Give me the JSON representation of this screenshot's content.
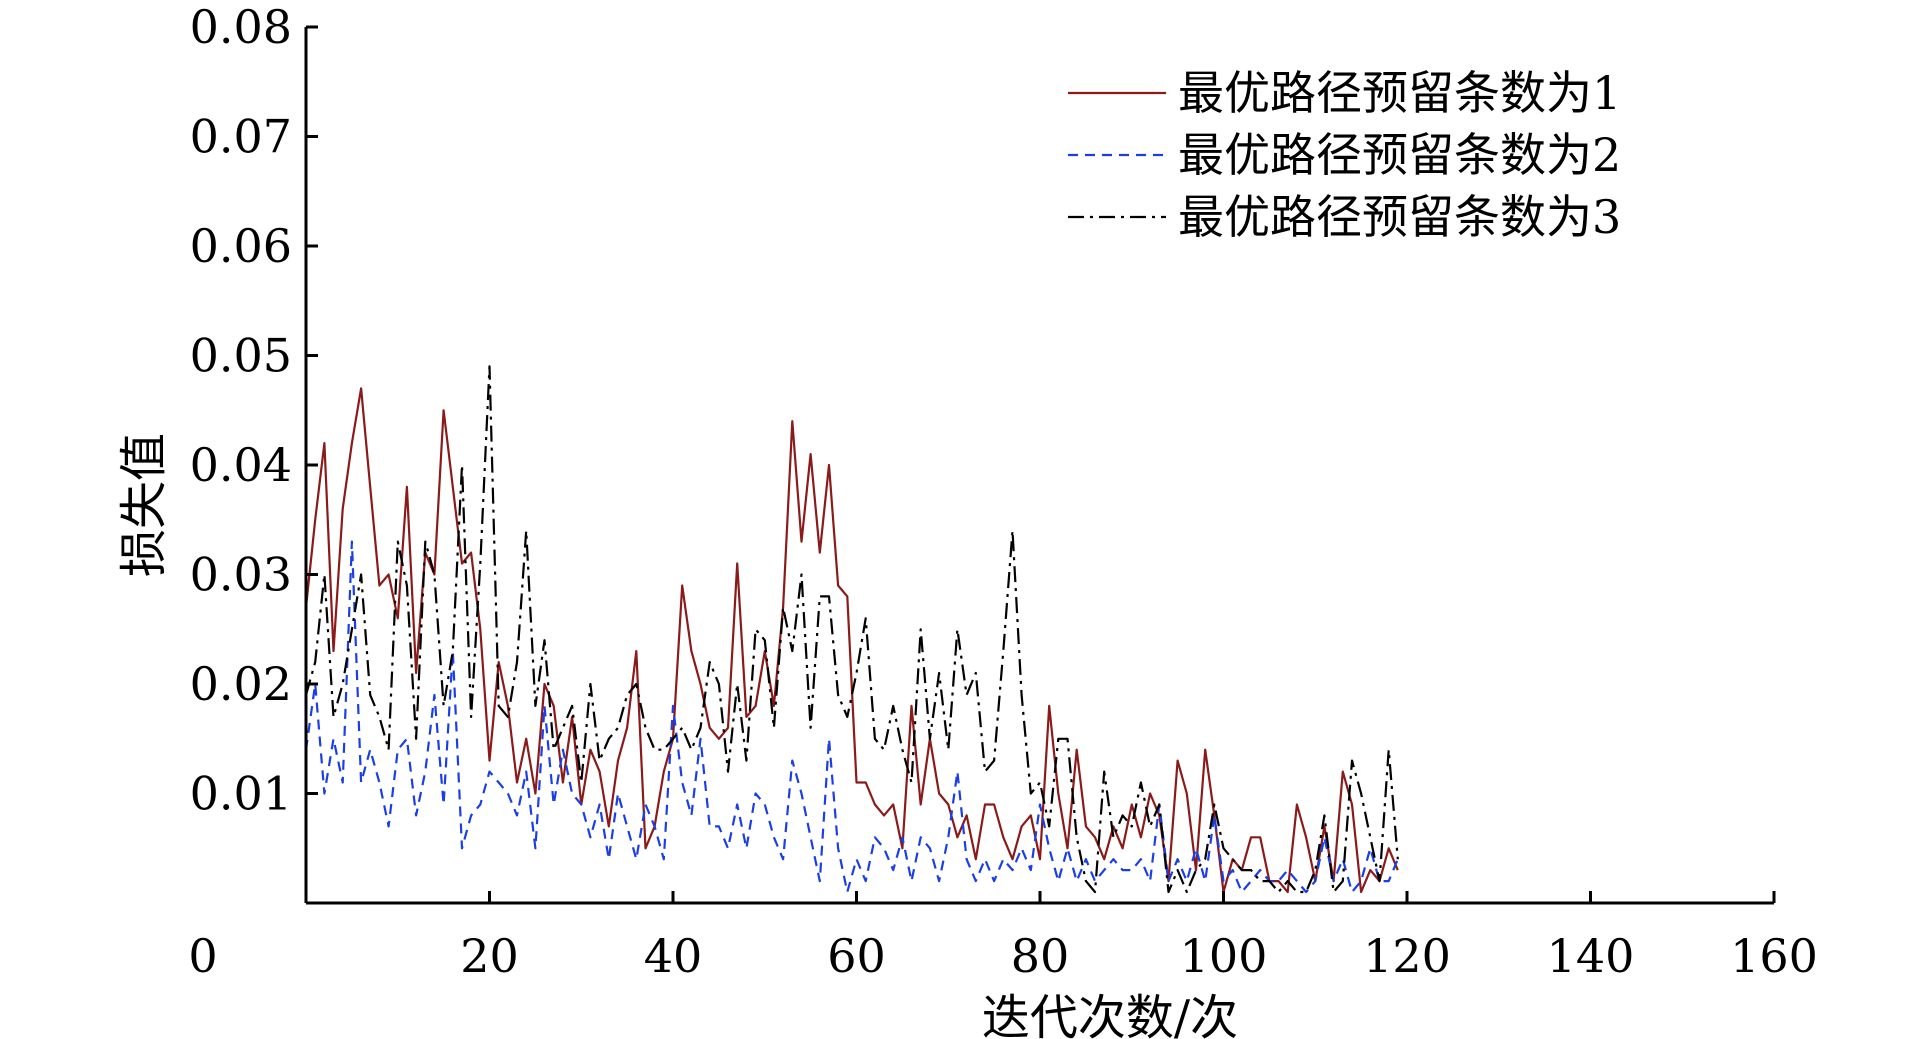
{
  "chart_data": {
    "type": "line",
    "xlabel": "迭代次数/次",
    "ylabel": "损失值",
    "xlim": [
      0,
      160
    ],
    "ylim": [
      0,
      0.08
    ],
    "x_ticks": [
      0,
      20,
      40,
      60,
      80,
      100,
      120,
      140,
      160
    ],
    "y_ticks": [
      0.01,
      0.02,
      0.03,
      0.04,
      0.05,
      0.06,
      0.07,
      0.08
    ],
    "x_tick_labels": [
      "0",
      "20",
      "40",
      "60",
      "80",
      "100",
      "120",
      "140",
      "160"
    ],
    "y_tick_labels": [
      "0.01",
      "0.02",
      "0.03",
      "0.04",
      "0.05",
      "0.06",
      "0.07",
      "0.08"
    ],
    "grid": false,
    "legend_position": "top-right",
    "series": [
      {
        "name": "最优路径预留条数为1",
        "color": "#8b1a1a",
        "line_style": "solid",
        "x": [
          0,
          1,
          2,
          3,
          4,
          5,
          6,
          7,
          8,
          9,
          10,
          11,
          12,
          13,
          14,
          15,
          16,
          17,
          18,
          19,
          20,
          21,
          22,
          23,
          24,
          25,
          26,
          27,
          28,
          29,
          30,
          31,
          32,
          33,
          34,
          35,
          36,
          37,
          38,
          39,
          40,
          41,
          42,
          43,
          44,
          45,
          46,
          47,
          48,
          49,
          50,
          51,
          52,
          53,
          54,
          55,
          56,
          57,
          58,
          59,
          60,
          61,
          62,
          63,
          64,
          65,
          66,
          67,
          68,
          69,
          70,
          71,
          72,
          73,
          74,
          75,
          76,
          77,
          78,
          79,
          80,
          81,
          82,
          83,
          84,
          85,
          86,
          87,
          88,
          89,
          90,
          91,
          92,
          93,
          94,
          95,
          96,
          97,
          98,
          99,
          100,
          101,
          102,
          103,
          104,
          105,
          106,
          107,
          108,
          109,
          110,
          111,
          112,
          113,
          114,
          115,
          116,
          117,
          118,
          119
        ],
        "y": [
          0.027,
          0.035,
          0.042,
          0.023,
          0.036,
          0.042,
          0.047,
          0.038,
          0.029,
          0.03,
          0.026,
          0.038,
          0.021,
          0.032,
          0.03,
          0.045,
          0.038,
          0.031,
          0.032,
          0.025,
          0.013,
          0.022,
          0.018,
          0.011,
          0.015,
          0.01,
          0.02,
          0.018,
          0.011,
          0.017,
          0.009,
          0.014,
          0.012,
          0.007,
          0.013,
          0.016,
          0.023,
          0.005,
          0.007,
          0.012,
          0.015,
          0.029,
          0.023,
          0.02,
          0.016,
          0.015,
          0.016,
          0.031,
          0.017,
          0.018,
          0.023,
          0.018,
          0.027,
          0.044,
          0.033,
          0.041,
          0.032,
          0.04,
          0.029,
          0.028,
          0.011,
          0.011,
          0.009,
          0.008,
          0.009,
          0.005,
          0.018,
          0.009,
          0.015,
          0.01,
          0.009,
          0.006,
          0.008,
          0.004,
          0.009,
          0.009,
          0.006,
          0.004,
          0.007,
          0.008,
          0.004,
          0.018,
          0.01,
          0.005,
          0.014,
          0.007,
          0.006,
          0.004,
          0.007,
          0.005,
          0.009,
          0.006,
          0.01,
          0.008,
          0.002,
          0.013,
          0.01,
          0.003,
          0.014,
          0.008,
          0.001,
          0.004,
          0.003,
          0.006,
          0.006,
          0.002,
          0.002,
          0.001,
          0.009,
          0.006,
          0.002,
          0.007,
          0.002,
          0.012,
          0.009,
          0.001,
          0.003,
          0.002,
          0.005,
          0.003
        ]
      },
      {
        "name": "最优路径预留条数为2",
        "color": "#1a3fe6",
        "line_style": "dashed",
        "x": [
          0,
          1,
          2,
          3,
          4,
          5,
          6,
          7,
          8,
          9,
          10,
          11,
          12,
          13,
          14,
          15,
          16,
          17,
          18,
          19,
          20,
          21,
          22,
          23,
          24,
          25,
          26,
          27,
          28,
          29,
          30,
          31,
          32,
          33,
          34,
          35,
          36,
          37,
          38,
          39,
          40,
          41,
          42,
          43,
          44,
          45,
          46,
          47,
          48,
          49,
          50,
          51,
          52,
          53,
          54,
          55,
          56,
          57,
          58,
          59,
          60,
          61,
          62,
          63,
          64,
          65,
          66,
          67,
          68,
          69,
          70,
          71,
          72,
          73,
          74,
          75,
          76,
          77,
          78,
          79,
          80,
          81,
          82,
          83,
          84,
          85,
          86,
          87,
          88,
          89,
          90,
          91,
          92,
          93,
          94,
          95,
          96,
          97,
          98,
          99,
          100,
          101,
          102,
          103,
          104,
          105,
          106,
          107,
          108,
          109,
          110,
          111,
          112,
          113,
          114,
          115,
          116,
          117,
          118,
          119
        ],
        "y": [
          0.014,
          0.02,
          0.01,
          0.015,
          0.011,
          0.033,
          0.011,
          0.014,
          0.011,
          0.007,
          0.014,
          0.015,
          0.008,
          0.012,
          0.019,
          0.009,
          0.023,
          0.005,
          0.008,
          0.009,
          0.012,
          0.011,
          0.01,
          0.008,
          0.012,
          0.005,
          0.018,
          0.009,
          0.014,
          0.01,
          0.009,
          0.006,
          0.009,
          0.004,
          0.01,
          0.007,
          0.004,
          0.009,
          0.007,
          0.004,
          0.018,
          0.011,
          0.008,
          0.015,
          0.007,
          0.007,
          0.005,
          0.009,
          0.005,
          0.01,
          0.009,
          0.006,
          0.004,
          0.013,
          0.01,
          0.006,
          0.002,
          0.015,
          0.005,
          0.001,
          0.004,
          0.002,
          0.006,
          0.005,
          0.003,
          0.006,
          0.002,
          0.006,
          0.005,
          0.002,
          0.006,
          0.012,
          0.004,
          0.002,
          0.004,
          0.002,
          0.004,
          0.003,
          0.005,
          0.003,
          0.009,
          0.005,
          0.002,
          0.005,
          0.002,
          0.004,
          0.002,
          0.003,
          0.004,
          0.003,
          0.003,
          0.004,
          0.002,
          0.009,
          0.002,
          0.004,
          0.002,
          0.005,
          0.002,
          0.008,
          0.002,
          0.003,
          0.001,
          0.002,
          0.003,
          0.002,
          0.002,
          0.003,
          0.002,
          0.001,
          0.002,
          0.006,
          0.002,
          0.004,
          0.001,
          0.002,
          0.005,
          0.002,
          0.002,
          0.004
        ]
      },
      {
        "name": "最优路径预留条数为3",
        "color": "#000000",
        "line_style": "dashdot",
        "x": [
          0,
          1,
          2,
          3,
          4,
          5,
          6,
          7,
          8,
          9,
          10,
          11,
          12,
          13,
          14,
          15,
          16,
          17,
          18,
          19,
          20,
          21,
          22,
          23,
          24,
          25,
          26,
          27,
          28,
          29,
          30,
          31,
          32,
          33,
          34,
          35,
          36,
          37,
          38,
          39,
          40,
          41,
          42,
          43,
          44,
          45,
          46,
          47,
          48,
          49,
          50,
          51,
          52,
          53,
          54,
          55,
          56,
          57,
          58,
          59,
          60,
          61,
          62,
          63,
          64,
          65,
          66,
          67,
          68,
          69,
          70,
          71,
          72,
          73,
          74,
          75,
          76,
          77,
          78,
          79,
          80,
          81,
          82,
          83,
          84,
          85,
          86,
          87,
          88,
          89,
          90,
          91,
          92,
          93,
          94,
          95,
          96,
          97,
          98,
          99,
          100,
          101,
          102,
          103,
          104,
          105,
          106,
          107,
          108,
          109,
          110,
          111,
          112,
          113,
          114,
          115,
          116,
          117,
          118,
          119
        ],
        "y": [
          0.019,
          0.022,
          0.03,
          0.017,
          0.02,
          0.025,
          0.03,
          0.019,
          0.017,
          0.014,
          0.033,
          0.029,
          0.015,
          0.033,
          0.03,
          0.018,
          0.023,
          0.04,
          0.017,
          0.031,
          0.049,
          0.018,
          0.017,
          0.022,
          0.034,
          0.018,
          0.024,
          0.014,
          0.016,
          0.018,
          0.011,
          0.02,
          0.013,
          0.015,
          0.016,
          0.019,
          0.02,
          0.016,
          0.014,
          0.014,
          0.015,
          0.016,
          0.014,
          0.016,
          0.022,
          0.02,
          0.012,
          0.02,
          0.013,
          0.025,
          0.024,
          0.016,
          0.027,
          0.023,
          0.03,
          0.016,
          0.028,
          0.028,
          0.019,
          0.017,
          0.021,
          0.026,
          0.015,
          0.014,
          0.018,
          0.014,
          0.011,
          0.025,
          0.015,
          0.021,
          0.014,
          0.025,
          0.019,
          0.021,
          0.012,
          0.013,
          0.023,
          0.034,
          0.019,
          0.01,
          0.011,
          0.007,
          0.015,
          0.015,
          0.006,
          0.002,
          0.001,
          0.012,
          0.006,
          0.008,
          0.007,
          0.011,
          0.007,
          0.009,
          0.001,
          0.003,
          0.001,
          0.003,
          0.004,
          0.009,
          0.005,
          0.004,
          0.003,
          0.003,
          0.002,
          0.002,
          0.001,
          0.002,
          0.001,
          0.001,
          0.003,
          0.008,
          0.001,
          0.002,
          0.013,
          0.01,
          0.006,
          0.002,
          0.014,
          0.004
        ]
      }
    ]
  }
}
